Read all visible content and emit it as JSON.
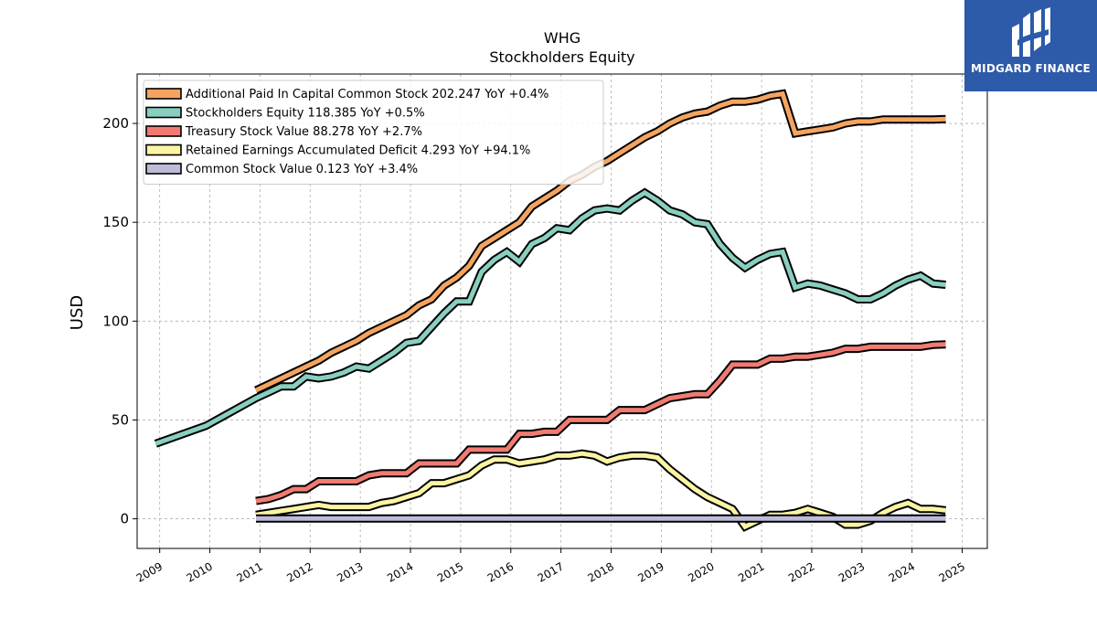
{
  "brand": {
    "name": "MIDGARD FINANCE",
    "bg_color": "#2d5aa9"
  },
  "chart_data": {
    "type": "line",
    "title": "WHG",
    "subtitle": "Stockholders  Equity",
    "ylabel": "USD",
    "xlabel": "",
    "xlim": [
      2008.55,
      2025.5
    ],
    "ylim": [
      -15,
      225
    ],
    "yticks": [
      0,
      50,
      100,
      150,
      200
    ],
    "xticks": [
      2009,
      2010,
      2011,
      2012,
      2013,
      2014,
      2015,
      2016,
      2017,
      2018,
      2019,
      2020,
      2021,
      2022,
      2023,
      2024,
      2025
    ],
    "grid": true,
    "legend_position": "top-left",
    "series": [
      {
        "name": "Additional Paid In Capital Common Stock",
        "legend": "Additional Paid In Capital Common Stock  202.247 YoY +0.4%",
        "color": "#f4a460",
        "points": [
          [
            2010.92,
            65
          ],
          [
            2011.17,
            68
          ],
          [
            2011.42,
            71
          ],
          [
            2011.67,
            74
          ],
          [
            2011.92,
            77
          ],
          [
            2012.17,
            80
          ],
          [
            2012.42,
            84
          ],
          [
            2012.67,
            87
          ],
          [
            2012.92,
            90
          ],
          [
            2013.17,
            94
          ],
          [
            2013.42,
            97
          ],
          [
            2013.67,
            100
          ],
          [
            2013.92,
            103
          ],
          [
            2014.17,
            108
          ],
          [
            2014.42,
            111
          ],
          [
            2014.67,
            118
          ],
          [
            2014.92,
            122
          ],
          [
            2015.17,
            128
          ],
          [
            2015.42,
            138
          ],
          [
            2015.67,
            142
          ],
          [
            2015.92,
            146
          ],
          [
            2016.17,
            150
          ],
          [
            2016.42,
            158
          ],
          [
            2016.67,
            162
          ],
          [
            2016.92,
            166
          ],
          [
            2017.17,
            171
          ],
          [
            2017.42,
            174
          ],
          [
            2017.67,
            178
          ],
          [
            2017.92,
            181
          ],
          [
            2018.17,
            185
          ],
          [
            2018.42,
            189
          ],
          [
            2018.67,
            193
          ],
          [
            2018.92,
            196
          ],
          [
            2019.17,
            200
          ],
          [
            2019.42,
            203
          ],
          [
            2019.67,
            205
          ],
          [
            2019.92,
            206
          ],
          [
            2020.17,
            209
          ],
          [
            2020.42,
            211
          ],
          [
            2020.67,
            211
          ],
          [
            2020.92,
            212
          ],
          [
            2021.17,
            214
          ],
          [
            2021.42,
            215
          ],
          [
            2021.67,
            195
          ],
          [
            2021.92,
            196
          ],
          [
            2022.17,
            197
          ],
          [
            2022.42,
            198
          ],
          [
            2022.67,
            200
          ],
          [
            2022.92,
            201
          ],
          [
            2023.17,
            201
          ],
          [
            2023.42,
            202
          ],
          [
            2023.67,
            202
          ],
          [
            2023.92,
            202
          ],
          [
            2024.17,
            202
          ],
          [
            2024.42,
            202
          ],
          [
            2024.67,
            202.25
          ]
        ]
      },
      {
        "name": "Stockholders Equity",
        "legend": "Stockholders Equity  118.385 YoY +0.5%",
        "color": "#88cfc0",
        "points": [
          [
            2008.92,
            38
          ],
          [
            2009.92,
            47
          ],
          [
            2010.92,
            61
          ],
          [
            2011.17,
            64
          ],
          [
            2011.42,
            67
          ],
          [
            2011.67,
            67
          ],
          [
            2011.92,
            72
          ],
          [
            2012.17,
            71
          ],
          [
            2012.42,
            72
          ],
          [
            2012.67,
            74
          ],
          [
            2012.92,
            77
          ],
          [
            2013.17,
            76
          ],
          [
            2013.42,
            80
          ],
          [
            2013.67,
            84
          ],
          [
            2013.92,
            89
          ],
          [
            2014.17,
            90
          ],
          [
            2014.42,
            97
          ],
          [
            2014.67,
            104
          ],
          [
            2014.92,
            110
          ],
          [
            2015.17,
            110
          ],
          [
            2015.42,
            125
          ],
          [
            2015.67,
            131
          ],
          [
            2015.92,
            135
          ],
          [
            2016.17,
            130
          ],
          [
            2016.42,
            139
          ],
          [
            2016.67,
            142
          ],
          [
            2016.92,
            147
          ],
          [
            2017.17,
            146
          ],
          [
            2017.42,
            152
          ],
          [
            2017.67,
            156
          ],
          [
            2017.92,
            157
          ],
          [
            2018.17,
            156
          ],
          [
            2018.42,
            161
          ],
          [
            2018.67,
            165
          ],
          [
            2018.92,
            161
          ],
          [
            2019.17,
            156
          ],
          [
            2019.42,
            154
          ],
          [
            2019.67,
            150
          ],
          [
            2019.92,
            149
          ],
          [
            2020.17,
            139
          ],
          [
            2020.42,
            132
          ],
          [
            2020.67,
            127
          ],
          [
            2020.92,
            131
          ],
          [
            2021.17,
            134
          ],
          [
            2021.42,
            135
          ],
          [
            2021.67,
            117
          ],
          [
            2021.92,
            119
          ],
          [
            2022.17,
            118
          ],
          [
            2022.42,
            116
          ],
          [
            2022.67,
            114
          ],
          [
            2022.92,
            111
          ],
          [
            2023.17,
            111
          ],
          [
            2023.42,
            114
          ],
          [
            2023.67,
            118
          ],
          [
            2023.92,
            121
          ],
          [
            2024.17,
            123
          ],
          [
            2024.42,
            119
          ],
          [
            2024.67,
            118.39
          ]
        ]
      },
      {
        "name": "Treasury Stock Value",
        "legend": "Treasury Stock Value  88.278 YoY +2.7%",
        "color": "#f07b72",
        "points": [
          [
            2010.92,
            9
          ],
          [
            2011.17,
            10
          ],
          [
            2011.42,
            12
          ],
          [
            2011.67,
            15
          ],
          [
            2011.92,
            15
          ],
          [
            2012.17,
            19
          ],
          [
            2012.42,
            19
          ],
          [
            2012.67,
            19
          ],
          [
            2012.92,
            19
          ],
          [
            2013.17,
            22
          ],
          [
            2013.42,
            23
          ],
          [
            2013.67,
            23
          ],
          [
            2013.92,
            23
          ],
          [
            2014.17,
            28
          ],
          [
            2014.42,
            28
          ],
          [
            2014.67,
            28
          ],
          [
            2014.92,
            28
          ],
          [
            2015.17,
            35
          ],
          [
            2015.42,
            35
          ],
          [
            2015.67,
            35
          ],
          [
            2015.92,
            35
          ],
          [
            2016.17,
            43
          ],
          [
            2016.42,
            43
          ],
          [
            2016.67,
            44
          ],
          [
            2016.92,
            44
          ],
          [
            2017.17,
            50
          ],
          [
            2017.42,
            50
          ],
          [
            2017.67,
            50
          ],
          [
            2017.92,
            50
          ],
          [
            2018.17,
            55
          ],
          [
            2018.42,
            55
          ],
          [
            2018.67,
            55
          ],
          [
            2018.92,
            58
          ],
          [
            2019.17,
            61
          ],
          [
            2019.42,
            62
          ],
          [
            2019.67,
            63
          ],
          [
            2019.92,
            63
          ],
          [
            2020.17,
            70
          ],
          [
            2020.42,
            78
          ],
          [
            2020.67,
            78
          ],
          [
            2020.92,
            78
          ],
          [
            2021.17,
            81
          ],
          [
            2021.42,
            81
          ],
          [
            2021.67,
            82
          ],
          [
            2021.92,
            82
          ],
          [
            2022.17,
            83
          ],
          [
            2022.42,
            84
          ],
          [
            2022.67,
            86
          ],
          [
            2022.92,
            86
          ],
          [
            2023.17,
            87
          ],
          [
            2023.42,
            87
          ],
          [
            2023.67,
            87
          ],
          [
            2023.92,
            87
          ],
          [
            2024.17,
            87
          ],
          [
            2024.42,
            88
          ],
          [
            2024.67,
            88.28
          ]
        ]
      },
      {
        "name": "Retained Earnings Accumulated Deficit",
        "legend": "Retained Earnings Accumulated Deficit  4.293 YoY +94.1%",
        "color": "#fbf4a2",
        "points": [
          [
            2010.92,
            2
          ],
          [
            2011.17,
            3
          ],
          [
            2011.42,
            4
          ],
          [
            2011.67,
            5
          ],
          [
            2011.92,
            6
          ],
          [
            2012.17,
            7
          ],
          [
            2012.42,
            6
          ],
          [
            2012.67,
            6
          ],
          [
            2012.92,
            6
          ],
          [
            2013.17,
            6
          ],
          [
            2013.42,
            8
          ],
          [
            2013.67,
            9
          ],
          [
            2013.92,
            11
          ],
          [
            2014.17,
            13
          ],
          [
            2014.42,
            18
          ],
          [
            2014.67,
            18
          ],
          [
            2014.92,
            20
          ],
          [
            2015.17,
            22
          ],
          [
            2015.42,
            27
          ],
          [
            2015.67,
            30
          ],
          [
            2015.92,
            30
          ],
          [
            2016.17,
            28
          ],
          [
            2016.42,
            29
          ],
          [
            2016.67,
            30
          ],
          [
            2016.92,
            32
          ],
          [
            2017.17,
            32
          ],
          [
            2017.42,
            33
          ],
          [
            2017.67,
            32
          ],
          [
            2017.92,
            29
          ],
          [
            2018.17,
            31
          ],
          [
            2018.42,
            32
          ],
          [
            2018.67,
            32
          ],
          [
            2018.92,
            31
          ],
          [
            2019.17,
            25
          ],
          [
            2019.42,
            20
          ],
          [
            2019.67,
            15
          ],
          [
            2019.92,
            11
          ],
          [
            2020.17,
            8
          ],
          [
            2020.42,
            5
          ],
          [
            2020.67,
            -4
          ],
          [
            2020.92,
            -1
          ],
          [
            2021.17,
            2
          ],
          [
            2021.42,
            2
          ],
          [
            2021.67,
            3
          ],
          [
            2021.92,
            5
          ],
          [
            2022.17,
            3
          ],
          [
            2022.42,
            1
          ],
          [
            2022.67,
            -3
          ],
          [
            2022.92,
            -3
          ],
          [
            2023.17,
            -1
          ],
          [
            2023.42,
            3
          ],
          [
            2023.67,
            6
          ],
          [
            2023.92,
            8
          ],
          [
            2024.17,
            5
          ],
          [
            2024.42,
            5
          ],
          [
            2024.67,
            4.29
          ]
        ]
      },
      {
        "name": "Common Stock Value",
        "legend": "Common Stock Value  0.123 YoY +3.4%",
        "color": "#bcbcd9",
        "points": [
          [
            2010.92,
            0.12
          ],
          [
            2024.67,
            0.12
          ]
        ]
      }
    ]
  }
}
